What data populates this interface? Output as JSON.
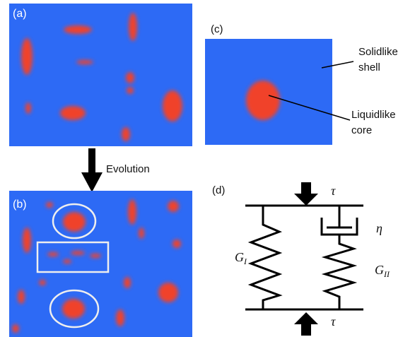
{
  "panels": {
    "a": "(a)",
    "b": "(b)",
    "c": "(c)",
    "d": "(d)"
  },
  "arrow_label": "Evolution",
  "annotations": {
    "shell": [
      "Solidlike",
      "shell"
    ],
    "core": [
      "Liquidlike",
      "core"
    ]
  },
  "model": {
    "stress": "τ",
    "viscosity": "η",
    "g1": {
      "symbol": "G",
      "subscript": "I"
    },
    "g2": {
      "symbol": "G",
      "subscript": "II"
    }
  }
}
